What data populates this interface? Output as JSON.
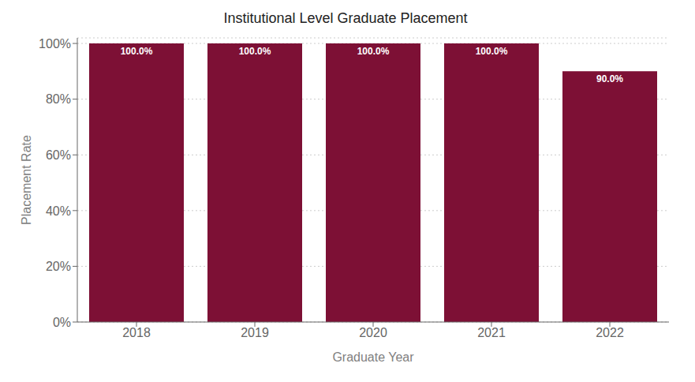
{
  "chart_data": {
    "type": "bar",
    "title": "Institutional Level Graduate Placement",
    "xlabel": "Graduate Year",
    "ylabel": "Placement Rate",
    "categories": [
      "2018",
      "2019",
      "2020",
      "2021",
      "2022"
    ],
    "values": [
      100.0,
      100.0,
      100.0,
      100.0,
      90.0
    ],
    "value_labels": [
      "100.0%",
      "100.0%",
      "100.0%",
      "100.0%",
      "90.0%"
    ],
    "data_labels": true,
    "color": "#7D1035",
    "ylim": [
      0,
      102
    ],
    "yticks": [
      {
        "value": 0,
        "label": "0%"
      },
      {
        "value": 20,
        "label": "20%"
      },
      {
        "value": 40,
        "label": "40%"
      },
      {
        "value": 60,
        "label": "60%"
      },
      {
        "value": 80,
        "label": "80%"
      },
      {
        "value": 100,
        "label": "100%"
      }
    ],
    "grid": true
  }
}
